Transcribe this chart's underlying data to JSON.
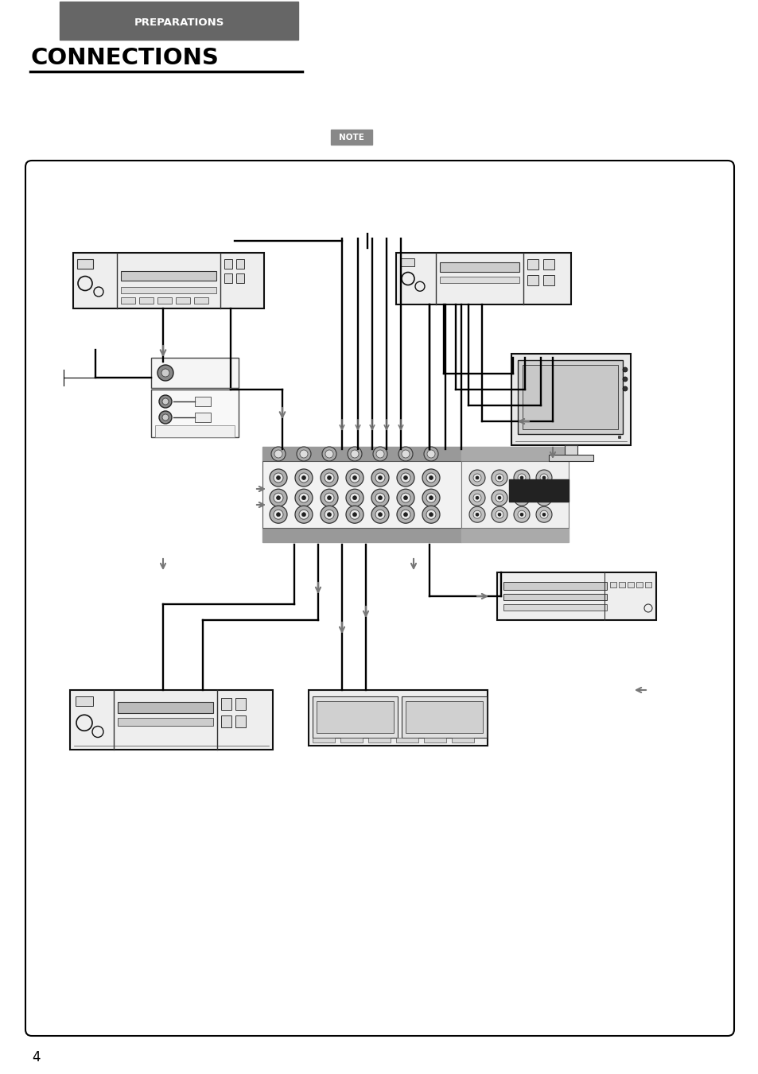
{
  "page_bg": "#ffffff",
  "header_bg": "#666666",
  "header_text": "PREPARATIONS",
  "header_text_color": "#ffffff",
  "title_text": "CONNECTIONS",
  "title_text_color": "#000000",
  "note_bg": "#888888",
  "note_text": "NOTE",
  "note_text_color": "#ffffff",
  "page_number": "4",
  "line_color": "#000000",
  "arrow_color": "#888888",
  "dark_box_color": "#222222",
  "figsize": [
    9.54,
    13.51
  ],
  "dpi": 100
}
